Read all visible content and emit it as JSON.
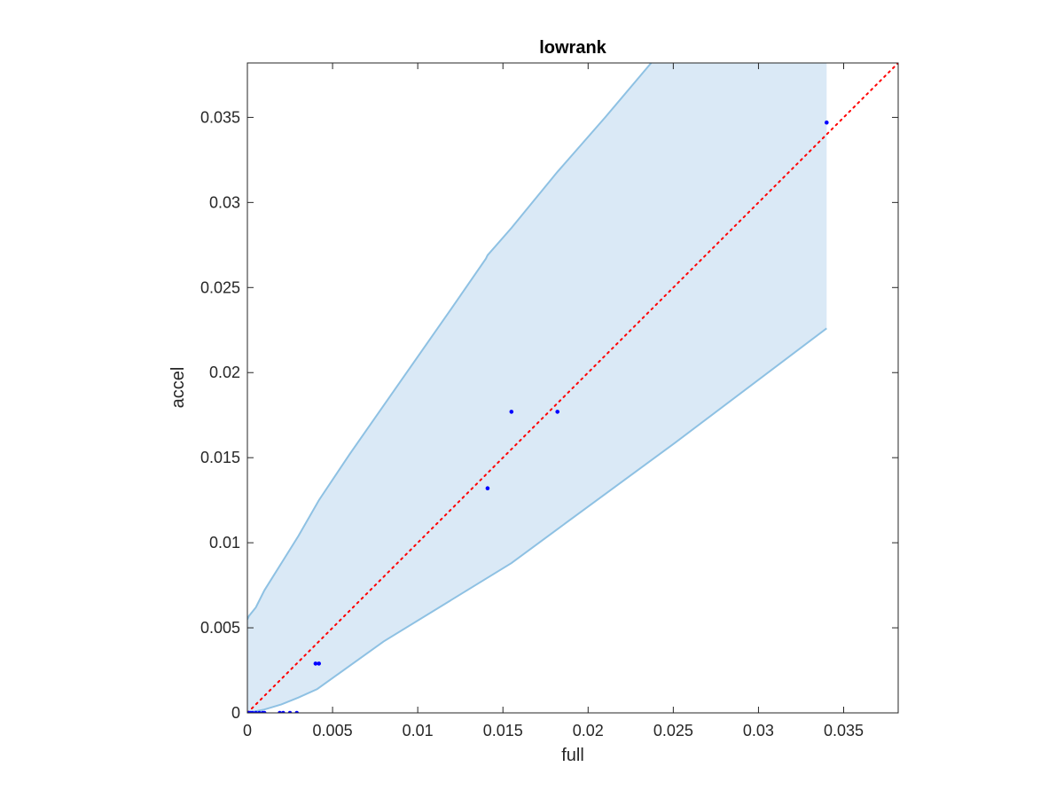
{
  "chart_data": {
    "type": "scatter",
    "title": "lowrank",
    "xlabel": "full",
    "ylabel": "accel",
    "xlim": [
      0,
      0.0382
    ],
    "ylim": [
      0,
      0.0382
    ],
    "grid": false,
    "legend": "none",
    "xticks": [
      "0",
      "0.005",
      "0.01",
      "0.015",
      "0.02",
      "0.025",
      "0.03",
      "0.035"
    ],
    "yticks": [
      "0",
      "0.005",
      "0.01",
      "0.015",
      "0.02",
      "0.025",
      "0.03",
      "0.035"
    ],
    "xtick_values": [
      0,
      0.005,
      0.01,
      0.015,
      0.02,
      0.025,
      0.03,
      0.035
    ],
    "ytick_values": [
      0,
      0.005,
      0.01,
      0.015,
      0.02,
      0.025,
      0.03,
      0.035
    ],
    "points": {
      "color": "#0000ff",
      "x": [
        0.0,
        0.0001,
        0.0002,
        0.0003,
        0.0005,
        0.0007,
        0.0009,
        0.001,
        0.0019,
        0.0021,
        0.0025,
        0.0029,
        0.004,
        0.0042,
        0.0141,
        0.0155,
        0.0182,
        0.034
      ],
      "y": [
        0.0,
        0.0,
        0.0,
        0.0,
        0.0,
        0.0,
        0.0,
        0.0,
        0.0,
        0.0,
        0.0,
        0.0,
        0.0029,
        0.0029,
        0.0132,
        0.0177,
        0.0177,
        0.0347
      ]
    },
    "reference_line": {
      "style": "dotted",
      "color": "#ff0000",
      "x": [
        0,
        0.0382
      ],
      "y": [
        0,
        0.0382
      ]
    },
    "band": {
      "fill_color": "#dae9f6",
      "edge_color": "#8ec1e3",
      "upper": {
        "x": [
          0.0,
          0.0001,
          0.0005,
          0.001,
          0.002,
          0.003,
          0.0042,
          0.006,
          0.009,
          0.012,
          0.014,
          0.0141,
          0.0155,
          0.0182,
          0.021,
          0.0237
        ],
        "y": [
          0.0055,
          0.0057,
          0.0062,
          0.0072,
          0.0088,
          0.0104,
          0.0125,
          0.0152,
          0.0195,
          0.0238,
          0.0267,
          0.0269,
          0.0285,
          0.0318,
          0.035,
          0.0382
        ]
      },
      "lower": {
        "x": [
          0.0,
          0.001,
          0.002,
          0.003,
          0.0041,
          0.008,
          0.0155,
          0.0182,
          0.025,
          0.034
        ],
        "y": [
          0.0,
          0.0002,
          0.0005,
          0.0009,
          0.0014,
          0.0042,
          0.0088,
          0.0108,
          0.0158,
          0.0226
        ]
      },
      "x_end": 0.034
    }
  }
}
